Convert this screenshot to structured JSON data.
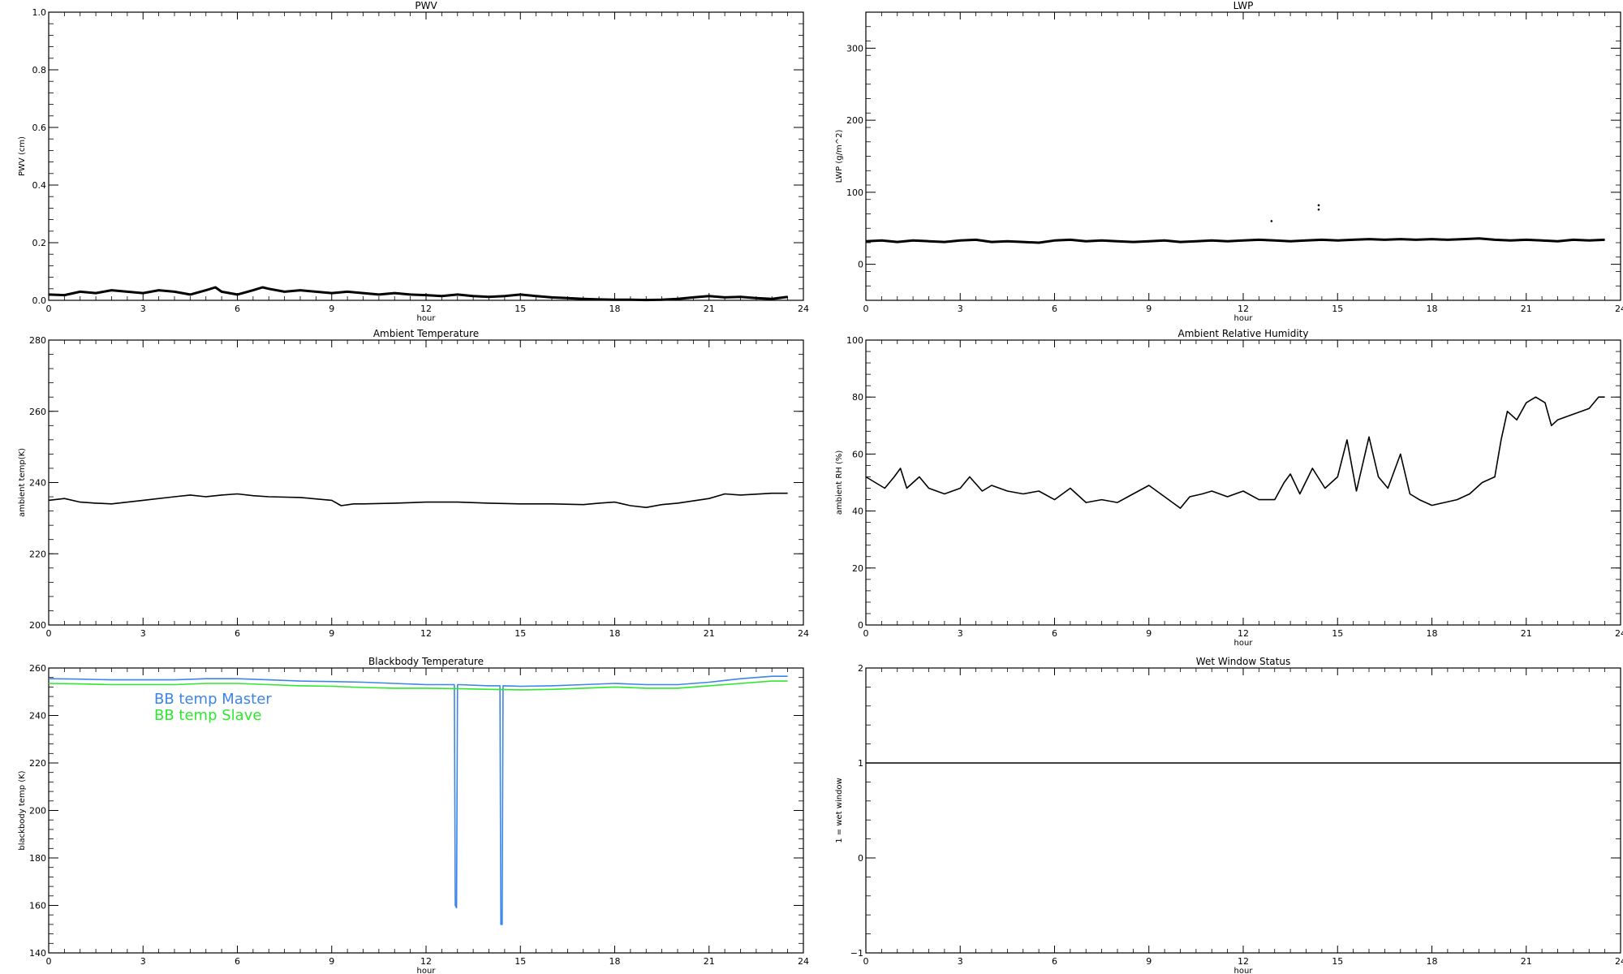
{
  "chart_data": [
    {
      "type": "line",
      "title": "PWV",
      "xlabel": "hour",
      "ylabel": "PWV (cm)",
      "xlim": [
        0,
        24
      ],
      "ylim": [
        0,
        1.0
      ],
      "xticks": [
        0,
        3,
        6,
        9,
        12,
        15,
        18,
        21,
        24
      ],
      "xtick_labels": [
        "0",
        "3",
        "6",
        "9",
        "12",
        "15",
        "18",
        "21",
        "24"
      ],
      "yticks": [
        0,
        0.2,
        0.4,
        0.6,
        0.8,
        1.0
      ],
      "ytick_labels": [
        "0.0",
        "0.2",
        "0.4",
        "0.6",
        "0.8",
        "1.0"
      ],
      "series": [
        {
          "color": "#000000",
          "x": [
            0,
            0.5,
            1,
            1.5,
            2,
            2.5,
            3,
            3.5,
            4,
            4.5,
            5,
            5.3,
            5.5,
            6,
            6.5,
            6.8,
            7,
            7.5,
            8,
            8.5,
            9,
            9.5,
            10,
            10.5,
            11,
            11.5,
            12,
            12.5,
            13,
            13.5,
            14,
            14.5,
            15,
            15.5,
            16,
            16.5,
            17,
            17.5,
            18,
            18.5,
            19,
            19.5,
            20,
            20.5,
            21,
            21.5,
            22,
            22.5,
            23,
            23.5
          ],
          "y": [
            0.02,
            0.018,
            0.03,
            0.025,
            0.035,
            0.03,
            0.025,
            0.035,
            0.03,
            0.02,
            0.035,
            0.045,
            0.03,
            0.02,
            0.035,
            0.045,
            0.04,
            0.03,
            0.035,
            0.03,
            0.025,
            0.03,
            0.025,
            0.02,
            0.025,
            0.02,
            0.018,
            0.015,
            0.02,
            0.015,
            0.012,
            0.015,
            0.02,
            0.015,
            0.01,
            0.008,
            0.005,
            0.003,
            0.002,
            0.002,
            0.001,
            0.002,
            0.005,
            0.01,
            0.015,
            0.01,
            0.012,
            0.008,
            0.005,
            0.012
          ]
        }
      ]
    },
    {
      "type": "line",
      "title": "LWP",
      "xlabel": "hour",
      "ylabel": "LWP (g/m^2)",
      "xlim": [
        0,
        24
      ],
      "ylim": [
        -50,
        350
      ],
      "xticks": [
        0,
        3,
        6,
        9,
        12,
        15,
        18,
        21,
        24
      ],
      "xtick_labels": [
        "0",
        "3",
        "6",
        "9",
        "12",
        "15",
        "18",
        "21",
        "24"
      ],
      "yticks": [
        0,
        100,
        200,
        300
      ],
      "ytick_labels": [
        "0",
        "100",
        "200",
        "300"
      ],
      "series": [
        {
          "color": "#000000",
          "x": [
            0,
            0.5,
            1,
            1.5,
            2,
            2.5,
            3,
            3.5,
            4,
            4.5,
            5,
            5.5,
            6,
            6.5,
            7,
            7.5,
            8,
            8.5,
            9,
            9.5,
            10,
            10.5,
            11,
            11.5,
            12,
            12.5,
            13,
            13.5,
            14,
            14.5,
            15,
            15.5,
            16,
            16.5,
            17,
            17.5,
            18,
            18.5,
            19,
            19.5,
            20,
            20.5,
            21,
            21.5,
            22,
            22.5,
            23,
            23.5
          ],
          "y": [
            32,
            33,
            31,
            33,
            32,
            31,
            33,
            34,
            31,
            32,
            31,
            30,
            33,
            34,
            32,
            33,
            32,
            31,
            32,
            33,
            31,
            32,
            33,
            32,
            33,
            34,
            33,
            32,
            33,
            34,
            33,
            34,
            35,
            34,
            35,
            34,
            35,
            34,
            35,
            36,
            34,
            33,
            34,
            33,
            32,
            34,
            33,
            34
          ]
        }
      ],
      "outliers": [
        {
          "x": 12.9,
          "y": 60
        },
        {
          "x": 14.4,
          "y": 82
        },
        {
          "x": 14.4,
          "y": 76
        }
      ]
    },
    {
      "type": "line",
      "title": "Ambient Temperature",
      "xlabel": "",
      "ylabel": "ambient temp(K)",
      "xlim": [
        0,
        24
      ],
      "ylim": [
        200,
        280
      ],
      "xticks": [
        0,
        3,
        6,
        9,
        12,
        15,
        18,
        21,
        24
      ],
      "xtick_labels": [
        "0",
        "3",
        "6",
        "9",
        "12",
        "15",
        "18",
        "21",
        "24"
      ],
      "yticks": [
        200,
        220,
        240,
        260,
        280
      ],
      "ytick_labels": [
        "200",
        "220",
        "240",
        "260",
        "280"
      ],
      "series": [
        {
          "color": "#000000",
          "x": [
            0,
            0.5,
            1,
            1.5,
            2,
            3,
            4,
            4.5,
            5,
            5.5,
            6,
            6.5,
            7,
            8,
            9,
            9.3,
            9.7,
            10,
            11,
            12,
            13,
            14,
            15,
            16,
            17,
            17.5,
            18,
            18.5,
            19,
            19.5,
            20,
            21,
            21.5,
            22,
            23,
            23.5
          ],
          "y": [
            235,
            235.5,
            234.5,
            234.2,
            234,
            235,
            236,
            236.5,
            236,
            236.5,
            236.8,
            236.3,
            236,
            235.8,
            235,
            233.5,
            234,
            234,
            234.2,
            234.5,
            234.5,
            234.2,
            234,
            234,
            233.8,
            234.2,
            234.5,
            233.5,
            233,
            233.8,
            234.2,
            235.5,
            236.8,
            236.5,
            237,
            237
          ]
        }
      ]
    },
    {
      "type": "line",
      "title": "Ambient Relative Humidity",
      "xlabel": "hour",
      "ylabel": "ambient RH (%)",
      "xlim": [
        0,
        24
      ],
      "ylim": [
        0,
        100
      ],
      "xticks": [
        0,
        3,
        6,
        9,
        12,
        15,
        18,
        21,
        24
      ],
      "xtick_labels": [
        "0",
        "3",
        "6",
        "9",
        "12",
        "15",
        "18",
        "21",
        "24"
      ],
      "yticks": [
        0,
        20,
        40,
        60,
        80,
        100
      ],
      "ytick_labels": [
        "0",
        "20",
        "40",
        "60",
        "80",
        "100"
      ],
      "series": [
        {
          "color": "#000000",
          "x": [
            0,
            0.3,
            0.6,
            0.9,
            1.1,
            1.3,
            1.7,
            2.0,
            2.5,
            3.0,
            3.3,
            3.7,
            4.0,
            4.5,
            5.0,
            5.5,
            6.0,
            6.5,
            7.0,
            7.5,
            8.0,
            8.5,
            9.0,
            9.5,
            10.0,
            10.3,
            10.7,
            11.0,
            11.5,
            12.0,
            12.5,
            13.0,
            13.3,
            13.5,
            13.8,
            14.2,
            14.6,
            15.0,
            15.3,
            15.6,
            16.0,
            16.3,
            16.6,
            17.0,
            17.3,
            17.6,
            18.0,
            18.4,
            18.8,
            19.2,
            19.6,
            20.0,
            20.2,
            20.4,
            20.7,
            21.0,
            21.3,
            21.6,
            21.8,
            22.0,
            22.5,
            23.0,
            23.3,
            23.5
          ],
          "y": [
            52,
            50,
            48,
            52,
            55,
            48,
            52,
            48,
            46,
            48,
            52,
            47,
            49,
            47,
            46,
            47,
            44,
            48,
            43,
            44,
            43,
            46,
            49,
            45,
            41,
            45,
            46,
            47,
            45,
            47,
            44,
            44,
            50,
            53,
            46,
            55,
            48,
            52,
            65,
            47,
            66,
            52,
            48,
            60,
            46,
            44,
            42,
            43,
            44,
            46,
            50,
            52,
            65,
            75,
            72,
            78,
            80,
            78,
            70,
            72,
            74,
            76,
            80,
            80
          ]
        }
      ]
    },
    {
      "type": "line",
      "title": "Blackbody Temperature",
      "xlabel": "hour",
      "ylabel": "blackbody temp (K)",
      "xlim": [
        0,
        24
      ],
      "ylim": [
        140,
        260
      ],
      "xticks": [
        0,
        3,
        6,
        9,
        12,
        15,
        18,
        21,
        24
      ],
      "xtick_labels": [
        "0",
        "3",
        "6",
        "9",
        "12",
        "15",
        "18",
        "21",
        "24"
      ],
      "yticks": [
        140,
        160,
        180,
        200,
        220,
        240,
        260
      ],
      "ytick_labels": [
        "140",
        "160",
        "180",
        "200",
        "220",
        "240",
        "260"
      ],
      "series": [
        {
          "name": "BB temp Master",
          "color": "#3d85e8",
          "x": [
            0,
            1,
            2,
            3,
            4,
            5,
            6,
            7,
            8,
            9,
            10,
            11,
            12,
            12.9,
            12.93,
            12.97,
            13,
            13.05,
            14,
            14.35,
            14.38,
            14.42,
            14.45,
            15,
            16,
            17,
            18,
            19,
            20,
            21,
            22,
            23,
            23.5
          ],
          "y": [
            255.5,
            255.3,
            255,
            255,
            255,
            255.5,
            255.5,
            255,
            254.5,
            254.3,
            254,
            253.5,
            253,
            253,
            160,
            159,
            253,
            253,
            252.5,
            252.5,
            152,
            152,
            252.5,
            252.3,
            252.5,
            253,
            253.5,
            253,
            253,
            254,
            255.5,
            256.5,
            256.5
          ]
        },
        {
          "name": "BB temp Slave",
          "color": "#2ee82e",
          "x": [
            0,
            1,
            2,
            3,
            4,
            5,
            6,
            7,
            8,
            9,
            10,
            11,
            12,
            13,
            14,
            15,
            16,
            17,
            18,
            19,
            20,
            21,
            22,
            23,
            23.5
          ],
          "y": [
            253.5,
            253.3,
            253,
            253,
            253,
            253.5,
            253.5,
            253,
            252.5,
            252.3,
            251.8,
            251.5,
            251.5,
            251.3,
            251,
            250.8,
            251,
            251.5,
            252,
            251.5,
            251.5,
            252.5,
            253.5,
            254.5,
            254.5
          ]
        }
      ],
      "legend": [
        "BB temp Master",
        "BB temp Slave"
      ]
    },
    {
      "type": "line",
      "title": "Wet Window Status",
      "xlabel": "hour",
      "ylabel": "1 = wet window",
      "xlim": [
        0,
        24
      ],
      "ylim": [
        -1,
        2
      ],
      "xticks": [
        0,
        3,
        6,
        9,
        12,
        15,
        18,
        21,
        24
      ],
      "xtick_labels": [
        "0",
        "3",
        "6",
        "9",
        "12",
        "15",
        "18",
        "21",
        "24"
      ],
      "yticks": [
        -1,
        0,
        1,
        2
      ],
      "ytick_labels": [
        "−1",
        "0",
        "1",
        "2"
      ],
      "series": [
        {
          "color": "#000000",
          "x": [
            0,
            24
          ],
          "y": [
            1,
            1
          ]
        }
      ]
    }
  ]
}
